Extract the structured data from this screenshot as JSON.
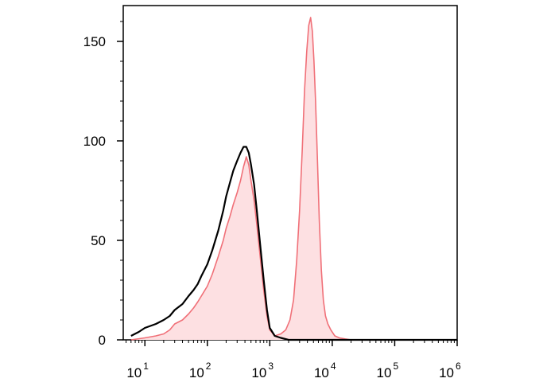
{
  "chart_data": {
    "type": "area",
    "title": "",
    "xlabel": "",
    "ylabel": "",
    "x_scale": "log",
    "xlim": [
      4.5,
      1000000
    ],
    "ylim": [
      0,
      168
    ],
    "legend": "none",
    "grid": false,
    "x_ticks": [
      {
        "base": "10",
        "exp": "1",
        "value": 10
      },
      {
        "base": "10",
        "exp": "2",
        "value": 100
      },
      {
        "base": "10",
        "exp": "3",
        "value": 1000
      },
      {
        "base": "10",
        "exp": "4",
        "value": 10000
      },
      {
        "base": "10",
        "exp": "5",
        "value": 100000
      },
      {
        "base": "10",
        "exp": "6",
        "value": 1000000
      }
    ],
    "y_ticks": [
      {
        "label": "0",
        "value": 0
      },
      {
        "label": "50",
        "value": 50
      },
      {
        "label": "100",
        "value": 100
      },
      {
        "label": "150",
        "value": 150
      }
    ],
    "series": [
      {
        "style": "filled",
        "line_color": "#f07078",
        "fill_color": "#fde0e2",
        "x": [
          6,
          10,
          15,
          20,
          25,
          30,
          40,
          50,
          60,
          70,
          80,
          100,
          120,
          150,
          180,
          200,
          230,
          260,
          300,
          340,
          380,
          420,
          460,
          500,
          560,
          620,
          700,
          800,
          900,
          1000,
          1200,
          1500,
          1800,
          2100,
          2400,
          2700,
          3000,
          3300,
          3600,
          3900,
          4200,
          4500,
          4800,
          5100,
          5400,
          5800,
          6200,
          6700,
          7200,
          7800,
          8500,
          9500,
          11000,
          13000,
          16000,
          20000,
          40000,
          100000,
          1000000
        ],
        "y": [
          0,
          1,
          2,
          3,
          5,
          8,
          10,
          13,
          16,
          19,
          22,
          27,
          33,
          42,
          50,
          56,
          62,
          68,
          74,
          80,
          87,
          92,
          88,
          80,
          70,
          58,
          42,
          25,
          12,
          5,
          2,
          3,
          5,
          10,
          20,
          40,
          65,
          95,
          125,
          145,
          158,
          162,
          155,
          140,
          120,
          90,
          60,
          35,
          20,
          12,
          8,
          5,
          2,
          1,
          0.5,
          0,
          0,
          0,
          0
        ]
      },
      {
        "style": "line",
        "line_color": "#000000",
        "x": [
          6,
          8,
          10,
          15,
          20,
          25,
          30,
          40,
          50,
          60,
          70,
          80,
          100,
          120,
          150,
          180,
          200,
          230,
          260,
          300,
          340,
          380,
          420,
          460,
          500,
          560,
          620,
          700,
          800,
          900,
          1000,
          1200,
          1500,
          2000,
          3000,
          1000000
        ],
        "y": [
          2,
          4,
          6,
          8,
          10,
          12,
          15,
          18,
          22,
          25,
          28,
          32,
          38,
          45,
          55,
          65,
          72,
          79,
          85,
          90,
          94,
          97,
          97,
          94,
          88,
          78,
          65,
          48,
          30,
          15,
          6,
          2,
          1,
          0,
          0,
          0
        ]
      }
    ]
  }
}
